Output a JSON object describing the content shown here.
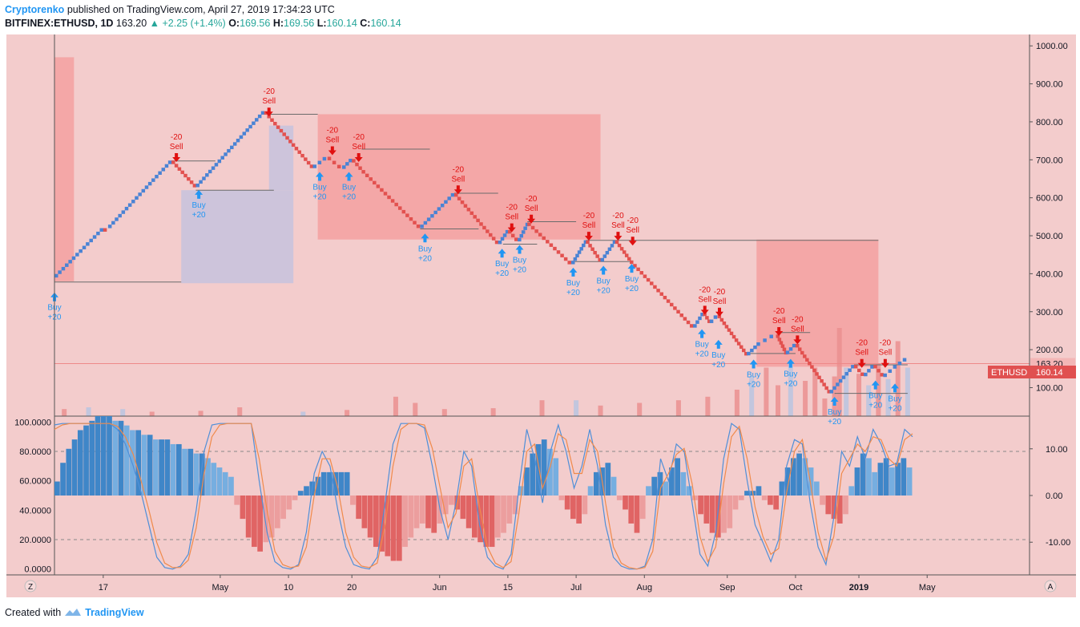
{
  "header": {
    "author": "Cryptorenko",
    "published_text": "published on TradingView.com, April 27, 2019 17:34:23 UTC",
    "symbol": "BITFINEX:ETHUSD, 1D",
    "last": "163.20",
    "change": "+2.25 (+1.4%)",
    "o_label": "O:",
    "o": "169.56",
    "h_label": "H:",
    "h": "169.56",
    "l_label": "L:",
    "l": "160.14",
    "c_label": "C:",
    "c": "160.14"
  },
  "footer": {
    "created_with": "Created with",
    "logo_text": "TradingView"
  },
  "colors": {
    "background": "#f3cccc",
    "up_brick": "#4a83d4",
    "down_brick": "#e2514f",
    "buy_arrow": "#2196f3",
    "sell_arrow": "#e01010",
    "fill_red": "#f4a3a3",
    "fill_blue": "#c9c3dd",
    "osc_blue_dark": "#3f86c8",
    "osc_blue_light": "#76aee0",
    "osc_red_dark": "#e06464",
    "osc_red_light": "#ec9e9e",
    "price_tag_bg": "#e05050",
    "axis_text": "#131722"
  },
  "chart_data": [
    {
      "type": "renko",
      "title": "BITFINEX:ETHUSD, 1D",
      "price_axis_ticks": [
        "1000.00",
        "900.00",
        "800.00",
        "700.00",
        "600.00",
        "500.00",
        "400.00",
        "300.00",
        "200.00",
        "100.00"
      ],
      "price_axis_values": [
        1000,
        900,
        800,
        700,
        600,
        500,
        400,
        300,
        200,
        100
      ],
      "ylim": [
        25,
        1030
      ],
      "time_axis_labels": [
        "17",
        "May",
        "10",
        "20",
        "Jun",
        "15",
        "Jul",
        "Aug",
        "Sep",
        "Oct",
        "2019",
        "May"
      ],
      "time_axis_positions": [
        0.05,
        0.17,
        0.24,
        0.305,
        0.395,
        0.465,
        0.535,
        0.605,
        0.69,
        0.76,
        0.825,
        0.895
      ],
      "last_price_label": "163.20",
      "last_price": 163.2,
      "symbol_tag": "ETHUSD",
      "close_label": "160.14",
      "close_price": 160.14,
      "brick_path": [
        {
          "x": 0.0,
          "y": 390
        },
        {
          "x": 0.05,
          "y": 520
        },
        {
          "x": 0.055,
          "y": 520
        },
        {
          "x": 0.12,
          "y": 698
        },
        {
          "x": 0.145,
          "y": 628
        },
        {
          "x": 0.215,
          "y": 828
        },
        {
          "x": 0.265,
          "y": 678
        },
        {
          "x": 0.28,
          "y": 708
        },
        {
          "x": 0.295,
          "y": 676
        },
        {
          "x": 0.305,
          "y": 702
        },
        {
          "x": 0.315,
          "y": 673
        },
        {
          "x": 0.375,
          "y": 520
        },
        {
          "x": 0.41,
          "y": 612
        },
        {
          "x": 0.455,
          "y": 478
        },
        {
          "x": 0.465,
          "y": 515
        },
        {
          "x": 0.475,
          "y": 485
        },
        {
          "x": 0.485,
          "y": 535
        },
        {
          "x": 0.53,
          "y": 425
        },
        {
          "x": 0.545,
          "y": 488
        },
        {
          "x": 0.56,
          "y": 432
        },
        {
          "x": 0.575,
          "y": 488
        },
        {
          "x": 0.59,
          "y": 435
        },
        {
          "x": 0.655,
          "y": 258
        },
        {
          "x": 0.665,
          "y": 298
        },
        {
          "x": 0.672,
          "y": 270
        },
        {
          "x": 0.68,
          "y": 292
        },
        {
          "x": 0.71,
          "y": 185
        },
        {
          "x": 0.72,
          "y": 210
        },
        {
          "x": 0.74,
          "y": 240
        },
        {
          "x": 0.75,
          "y": 188
        },
        {
          "x": 0.76,
          "y": 215
        },
        {
          "x": 0.795,
          "y": 85
        },
        {
          "x": 0.82,
          "y": 160
        },
        {
          "x": 0.83,
          "y": 130
        },
        {
          "x": 0.84,
          "y": 160
        },
        {
          "x": 0.85,
          "y": 128
        },
        {
          "x": 0.86,
          "y": 150
        },
        {
          "x": 0.875,
          "y": 178
        }
      ],
      "signals": [
        {
          "type": "buy",
          "label": "Buy",
          "qty": "+20",
          "x": 0.0,
          "y": 355
        },
        {
          "type": "sell",
          "label": "Sell",
          "qty": "-20",
          "x": 0.125,
          "y": 690
        },
        {
          "type": "buy",
          "label": "Buy",
          "qty": "+20",
          "x": 0.148,
          "y": 625
        },
        {
          "type": "sell",
          "label": "Sell",
          "qty": "-20",
          "x": 0.22,
          "y": 810
        },
        {
          "type": "buy",
          "label": "Buy",
          "qty": "+20",
          "x": 0.272,
          "y": 672
        },
        {
          "type": "sell",
          "label": "Sell",
          "qty": "-20",
          "x": 0.285,
          "y": 708
        },
        {
          "type": "buy",
          "label": "Buy",
          "qty": "+20",
          "x": 0.302,
          "y": 672
        },
        {
          "type": "sell",
          "label": "Sell",
          "qty": "-20",
          "x": 0.312,
          "y": 690
        },
        {
          "type": "buy",
          "label": "Buy",
          "qty": "+20",
          "x": 0.38,
          "y": 510
        },
        {
          "type": "sell",
          "label": "Sell",
          "qty": "-20",
          "x": 0.414,
          "y": 605
        },
        {
          "type": "buy",
          "label": "Buy",
          "qty": "+20",
          "x": 0.459,
          "y": 470
        },
        {
          "type": "sell",
          "label": "Sell",
          "qty": "-20",
          "x": 0.469,
          "y": 505
        },
        {
          "type": "buy",
          "label": "Buy",
          "qty": "+20",
          "x": 0.477,
          "y": 480
        },
        {
          "type": "sell",
          "label": "Sell",
          "qty": "-20",
          "x": 0.489,
          "y": 528
        },
        {
          "type": "buy",
          "label": "Buy",
          "qty": "+20",
          "x": 0.532,
          "y": 420
        },
        {
          "type": "sell",
          "label": "Sell",
          "qty": "-20",
          "x": 0.548,
          "y": 483
        },
        {
          "type": "buy",
          "label": "Buy",
          "qty": "+20",
          "x": 0.563,
          "y": 425
        },
        {
          "type": "sell",
          "label": "Sell",
          "qty": "-20",
          "x": 0.578,
          "y": 483
        },
        {
          "type": "buy",
          "label": "Buy",
          "qty": "+20",
          "x": 0.592,
          "y": 430
        },
        {
          "type": "sell",
          "label": "Sell",
          "qty": "-20",
          "x": 0.593,
          "y": 470
        },
        {
          "type": "sell",
          "label": "Sell",
          "qty": "-20",
          "x": 0.667,
          "y": 288
        },
        {
          "type": "buy",
          "label": "Buy",
          "qty": "+20",
          "x": 0.664,
          "y": 258
        },
        {
          "type": "sell",
          "label": "Sell",
          "qty": "-20",
          "x": 0.682,
          "y": 283
        },
        {
          "type": "buy",
          "label": "Buy",
          "qty": "+20",
          "x": 0.681,
          "y": 230
        },
        {
          "type": "buy",
          "label": "Buy",
          "qty": "+20",
          "x": 0.717,
          "y": 178
        },
        {
          "type": "sell",
          "label": "Sell",
          "qty": "-20",
          "x": 0.743,
          "y": 232
        },
        {
          "type": "sell",
          "label": "Sell",
          "qty": "-20",
          "x": 0.762,
          "y": 210
        },
        {
          "type": "buy",
          "label": "Buy",
          "qty": "+20",
          "x": 0.755,
          "y": 180
        },
        {
          "type": "buy",
          "label": "Buy",
          "qty": "+20",
          "x": 0.8,
          "y": 80
        },
        {
          "type": "sell",
          "label": "Sell",
          "qty": "-20",
          "x": 0.828,
          "y": 148
        },
        {
          "type": "buy",
          "label": "Buy",
          "qty": "+20",
          "x": 0.842,
          "y": 123
        },
        {
          "type": "sell",
          "label": "Sell",
          "qty": "-20",
          "x": 0.852,
          "y": 148
        },
        {
          "type": "buy",
          "label": "Buy",
          "qty": "+20",
          "x": 0.862,
          "y": 115
        }
      ],
      "fill_regions": [
        {
          "color": "red",
          "x0": 0.0,
          "x1": 0.02,
          "ytop": 970,
          "ybot": 380
        },
        {
          "color": "blue",
          "x0": 0.13,
          "x1": 0.245,
          "ytop": 620,
          "ybot": 375
        },
        {
          "color": "blue",
          "x0": 0.22,
          "x1": 0.245,
          "ytop": 790,
          "ybot": 620
        },
        {
          "color": "red",
          "x0": 0.27,
          "x1": 0.56,
          "ytop": 820,
          "ybot": 490
        },
        {
          "color": "red",
          "x0": 0.72,
          "x1": 0.845,
          "ytop": 490,
          "ybot": 155
        }
      ],
      "level_lines": [
        {
          "y": 378,
          "x0": 0.0,
          "x1": 0.13
        },
        {
          "y": 697,
          "x0": 0.12,
          "x1": 0.165
        },
        {
          "y": 620,
          "x0": 0.145,
          "x1": 0.225
        },
        {
          "y": 820,
          "x0": 0.22,
          "x1": 0.27
        },
        {
          "y": 728,
          "x0": 0.315,
          "x1": 0.385
        },
        {
          "y": 612,
          "x0": 0.41,
          "x1": 0.455
        },
        {
          "y": 518,
          "x0": 0.375,
          "x1": 0.435
        },
        {
          "y": 478,
          "x0": 0.46,
          "x1": 0.495
        },
        {
          "y": 537,
          "x0": 0.485,
          "x1": 0.535
        },
        {
          "y": 488,
          "x0": 0.545,
          "x1": 0.845
        },
        {
          "y": 432,
          "x0": 0.53,
          "x1": 0.59
        },
        {
          "y": 245,
          "x0": 0.745,
          "x1": 0.775
        },
        {
          "y": 190,
          "x0": 0.71,
          "x1": 0.76
        },
        {
          "y": 160,
          "x0": 0.82,
          "x1": 0.875
        },
        {
          "y": 85,
          "x0": 0.8,
          "x1": 0.875
        }
      ],
      "volume_bars_note": "",
      "volume_bars": [
        {
          "x": 0.01,
          "v": 0.08
        },
        {
          "x": 0.035,
          "v": 0.1
        },
        {
          "x": 0.07,
          "v": 0.08
        },
        {
          "x": 0.1,
          "v": 0.05
        },
        {
          "x": 0.15,
          "v": 0.06
        },
        {
          "x": 0.19,
          "v": 0.1
        },
        {
          "x": 0.255,
          "v": 0.05
        },
        {
          "x": 0.3,
          "v": 0.07
        },
        {
          "x": 0.35,
          "v": 0.22
        },
        {
          "x": 0.37,
          "v": 0.15
        },
        {
          "x": 0.4,
          "v": 0.08
        },
        {
          "x": 0.45,
          "v": 0.09
        },
        {
          "x": 0.5,
          "v": 0.18
        },
        {
          "x": 0.535,
          "v": 0.18
        },
        {
          "x": 0.56,
          "v": 0.12
        },
        {
          "x": 0.6,
          "v": 0.15
        },
        {
          "x": 0.64,
          "v": 0.18
        },
        {
          "x": 0.67,
          "v": 0.22
        },
        {
          "x": 0.7,
          "v": 0.3
        },
        {
          "x": 0.715,
          "v": 0.45
        },
        {
          "x": 0.73,
          "v": 0.55
        },
        {
          "x": 0.742,
          "v": 0.35
        },
        {
          "x": 0.755,
          "v": 0.62
        },
        {
          "x": 0.77,
          "v": 0.4
        },
        {
          "x": 0.78,
          "v": 0.55
        },
        {
          "x": 0.79,
          "v": 0.2
        },
        {
          "x": 0.8,
          "v": 0.45
        },
        {
          "x": 0.805,
          "v": 1.0
        },
        {
          "x": 0.812,
          "v": 0.55
        },
        {
          "x": 0.825,
          "v": 0.48
        },
        {
          "x": 0.835,
          "v": 0.35
        },
        {
          "x": 0.845,
          "v": 0.6
        },
        {
          "x": 0.855,
          "v": 0.42
        },
        {
          "x": 0.865,
          "v": 0.85
        },
        {
          "x": 0.875,
          "v": 0.55
        }
      ]
    },
    {
      "type": "oscillator",
      "left_axis_ticks": [
        "100.0000",
        "80.0000",
        "60.0000",
        "40.0000",
        "20.0000",
        "0.0000"
      ],
      "left_axis_values": [
        100,
        80,
        60,
        40,
        20,
        0
      ],
      "right_axis_ticks": [
        "10.00",
        "0.00",
        "-10.00"
      ],
      "right_axis_values": [
        10,
        0,
        -10
      ],
      "ylim_left": [
        -4,
        104
      ],
      "ylim_right": [
        -17,
        17
      ],
      "dashed_levels_left": [
        80,
        20
      ],
      "histogram_values": [
        3,
        7,
        10,
        12,
        14,
        15,
        16,
        17,
        17,
        17,
        16,
        16,
        15,
        14,
        14,
        13,
        13,
        12,
        12,
        12,
        11,
        11,
        10,
        10,
        9,
        9,
        8,
        7,
        6,
        5,
        4,
        -2,
        -5,
        -9,
        -11,
        -12,
        -10,
        -9,
        -7,
        -5,
        -3,
        -1,
        1,
        2,
        3,
        4,
        5,
        5,
        5,
        5,
        5,
        -2,
        -5,
        -7,
        -9,
        -11,
        -12,
        -13,
        -14,
        -14,
        -11,
        -9,
        -7,
        -6,
        -7,
        -8,
        -6,
        -4,
        -2,
        -3,
        -5,
        -7,
        -9,
        -10,
        -11,
        -11,
        -9,
        -8,
        -6,
        -4,
        2,
        6,
        9,
        11,
        12,
        10,
        8,
        -1,
        -3,
        -5,
        -6,
        -4,
        2,
        5,
        6,
        7,
        4,
        -1,
        -3,
        -6,
        -8,
        -5,
        2,
        4,
        5,
        3,
        6,
        8,
        5,
        2,
        -1,
        -4,
        -6,
        -8,
        -9,
        -8,
        -7,
        -3,
        -1,
        1,
        1,
        2,
        -1,
        -2,
        -3,
        3,
        6,
        8,
        9,
        8,
        6,
        3,
        -2,
        -4,
        -5,
        -6,
        -4,
        2,
        6,
        9,
        8,
        5,
        7,
        8,
        6,
        7,
        8,
        6
      ],
      "k_line": [
        98,
        99,
        99,
        99,
        99,
        99,
        99,
        99,
        95,
        85,
        70,
        52,
        30,
        8,
        1,
        0,
        2,
        10,
        40,
        80,
        98,
        99,
        99,
        99,
        99,
        99,
        60,
        25,
        5,
        1,
        0,
        3,
        25,
        65,
        80,
        70,
        40,
        15,
        3,
        1,
        0,
        8,
        45,
        85,
        99,
        99,
        99,
        96,
        70,
        40,
        20,
        45,
        80,
        70,
        30,
        8,
        2,
        0,
        10,
        55,
        95,
        75,
        45,
        80,
        98,
        80,
        55,
        70,
        95,
        70,
        30,
        8,
        2,
        0,
        0,
        2,
        20,
        75,
        60,
        85,
        80,
        45,
        10,
        2,
        25,
        75,
        99,
        95,
        60,
        30,
        18,
        5,
        20,
        70,
        88,
        85,
        45,
        15,
        3,
        35,
        80,
        70,
        90,
        75,
        95,
        85,
        70,
        72,
        95,
        90
      ],
      "d_line": [
        95,
        98,
        99,
        99,
        99,
        99,
        99,
        99,
        97,
        90,
        78,
        60,
        40,
        18,
        4,
        1,
        1,
        6,
        28,
        65,
        90,
        98,
        99,
        99,
        99,
        99,
        75,
        40,
        12,
        3,
        1,
        2,
        15,
        50,
        75,
        75,
        55,
        25,
        8,
        2,
        1,
        4,
        30,
        70,
        95,
        99,
        99,
        98,
        82,
        55,
        28,
        38,
        70,
        75,
        42,
        15,
        4,
        1,
        5,
        38,
        80,
        85,
        55,
        70,
        92,
        88,
        65,
        65,
        88,
        80,
        45,
        15,
        4,
        1,
        0,
        1,
        12,
        55,
        65,
        78,
        82,
        58,
        22,
        5,
        15,
        58,
        90,
        97,
        75,
        42,
        22,
        10,
        14,
        52,
        80,
        88,
        60,
        25,
        6,
        22,
        65,
        75,
        85,
        80,
        90,
        88,
        75,
        70,
        88,
        92
      ]
    }
  ]
}
